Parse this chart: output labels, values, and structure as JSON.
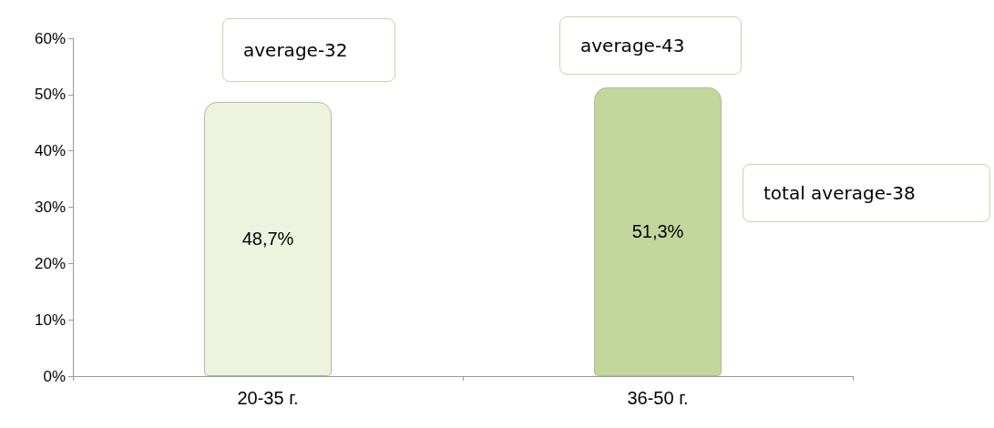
{
  "chart_data": {
    "type": "bar",
    "categories": [
      "20-35 г.",
      "36-50 г."
    ],
    "values": [
      48.7,
      51.3
    ],
    "colors": [
      "#eef3e0",
      "#c3d69b"
    ],
    "value_labels": [
      "48,7%",
      "51,3%"
    ],
    "ylim": [
      0,
      60
    ],
    "yticks": [
      {
        "value": 0,
        "label": "0%"
      },
      {
        "value": 10,
        "label": "10%"
      },
      {
        "value": 20,
        "label": "20%"
      },
      {
        "value": 30,
        "label": "30%"
      },
      {
        "value": 40,
        "label": "40%"
      },
      {
        "value": 50,
        "label": "50%"
      },
      {
        "value": 60,
        "label": "60%"
      }
    ],
    "annotations": [
      "average-32",
      "average-43",
      "total average-38"
    ],
    "grid": false
  }
}
